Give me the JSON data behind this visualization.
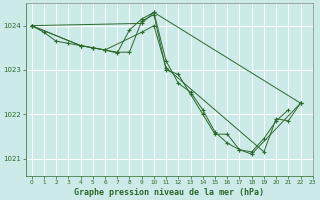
{
  "title": "Graphe pression niveau de la mer (hPa)",
  "background_color": "#cceae7",
  "grid_color": "#ffffff",
  "line_color": "#2d6a2d",
  "xlim": [
    -0.5,
    23
  ],
  "ylim": [
    1020.6,
    1024.5
  ],
  "yticks": [
    1021,
    1022,
    1023,
    1024
  ],
  "xticks": [
    0,
    1,
    2,
    3,
    4,
    5,
    6,
    7,
    8,
    9,
    10,
    11,
    12,
    13,
    14,
    15,
    16,
    17,
    18,
    19,
    20,
    21,
    22,
    23
  ],
  "series": [
    {
      "x": [
        0,
        1,
        2,
        3,
        4,
        5,
        6,
        7,
        8,
        9,
        10,
        11,
        12,
        13,
        14,
        15,
        16,
        17,
        18,
        19,
        20,
        21
      ],
      "y": [
        1024.0,
        1023.85,
        1023.65,
        1023.6,
        1023.55,
        1023.5,
        1023.45,
        1023.4,
        1023.4,
        1024.1,
        1024.25,
        1023.0,
        1022.9,
        1022.45,
        1022.0,
        1021.55,
        1021.55,
        1021.2,
        1021.15,
        1021.45,
        1021.85,
        1022.1
      ]
    },
    {
      "x": [
        0,
        4,
        5,
        6,
        7,
        8,
        9,
        10,
        11,
        12,
        13,
        14,
        15,
        16,
        17,
        18,
        22
      ],
      "y": [
        1024.0,
        1023.55,
        1023.5,
        1023.45,
        1023.38,
        1023.9,
        1024.15,
        1024.3,
        1023.2,
        1022.7,
        1022.5,
        1022.1,
        1021.6,
        1021.35,
        1021.2,
        1021.1,
        1022.25
      ]
    },
    {
      "x": [
        0,
        4,
        5,
        6,
        9,
        10,
        11,
        19,
        20,
        21,
        22
      ],
      "y": [
        1024.0,
        1023.55,
        1023.5,
        1023.45,
        1023.85,
        1024.0,
        1023.05,
        1021.15,
        1021.9,
        1021.85,
        1022.25
      ]
    },
    {
      "x": [
        0,
        9,
        10,
        22
      ],
      "y": [
        1024.0,
        1024.05,
        1024.3,
        1022.25
      ]
    }
  ]
}
